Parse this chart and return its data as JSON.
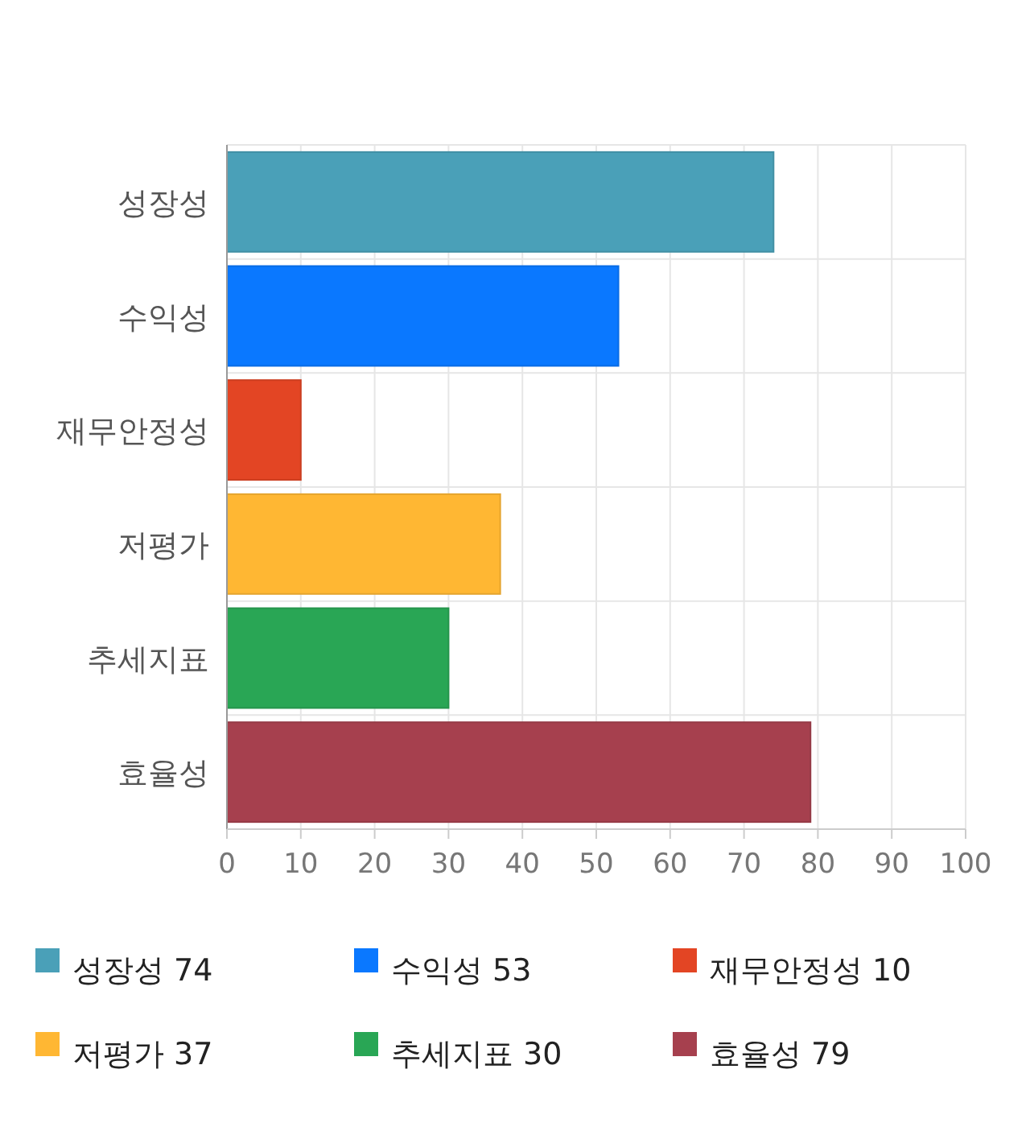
{
  "chart_data": {
    "type": "bar",
    "orientation": "horizontal",
    "stacked": true,
    "categories": [
      "성장성",
      "수익성",
      "재무안정성",
      "저평가",
      "추세지표",
      "효율성"
    ],
    "series": [
      {
        "name": "성장성 74",
        "color": "#4aa0b8",
        "values": [
          74,
          null,
          null,
          null,
          null,
          null
        ]
      },
      {
        "name": "수익성 53",
        "color": "#0a78ff",
        "values": [
          null,
          53,
          null,
          null,
          null,
          null
        ]
      },
      {
        "name": "재무안정성 10",
        "color": "#e34524",
        "values": [
          null,
          null,
          10,
          null,
          null,
          null
        ]
      },
      {
        "name": "저평가 37",
        "color": "#ffb733",
        "values": [
          null,
          null,
          null,
          37,
          null,
          null
        ]
      },
      {
        "name": "추세지표 30",
        "color": "#29a655",
        "values": [
          null,
          null,
          null,
          null,
          30,
          null
        ]
      },
      {
        "name": "효율성 79",
        "color": "#a6404e",
        "values": [
          null,
          null,
          null,
          null,
          null,
          79
        ]
      }
    ],
    "xlim": [
      0,
      100
    ],
    "xticks": [
      0,
      10,
      20,
      30,
      40,
      50,
      60,
      70,
      80,
      90,
      100
    ],
    "grid": true,
    "legend": "bottom"
  }
}
